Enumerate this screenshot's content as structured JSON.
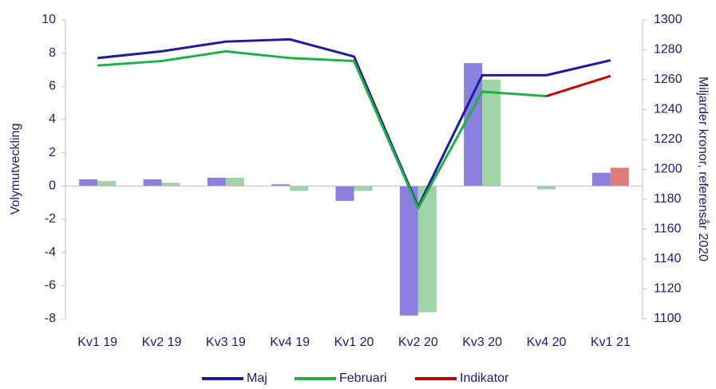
{
  "chart_data": {
    "type": "bar_line",
    "ylabel": "Volymutveckling",
    "y2label": "Miljarder kronor, referensår 2020",
    "categories": [
      "Kv1 19",
      "Kv2 19",
      "Kv3 19",
      "Kv4 19",
      "Kv1 20",
      "Kv2 20",
      "Kv3 20",
      "Kv4 20",
      "Kv1 21"
    ],
    "ylim": [
      -8,
      10
    ],
    "yticks": [
      -8,
      -6,
      -4,
      -2,
      0,
      2,
      4,
      6,
      8,
      10
    ],
    "y2lim": [
      1100,
      1300
    ],
    "y2ticks": [
      1100,
      1120,
      1140,
      1160,
      1180,
      1200,
      1220,
      1240,
      1260,
      1280,
      1300
    ],
    "legend": "bottom",
    "series": [
      {
        "name": "Maj",
        "color": "#1f1aa0",
        "bar_color": "#8b80e0",
        "axis": "y2",
        "values": [
          1274.5,
          1279,
          1285.5,
          1287,
          1275.5,
          1175,
          1263,
          1263,
          1273
        ],
        "bar_values": [
          0.4,
          0.4,
          0.5,
          0.1,
          -0.9,
          -7.8,
          7.4,
          null,
          0.8
        ]
      },
      {
        "name": "Februari",
        "color": "#1fb04a",
        "bar_color": "#9fd4a6",
        "axis": "y2",
        "values": [
          1269.5,
          1272.5,
          1279,
          1274.5,
          1272.5,
          1174,
          1252,
          1249,
          null
        ],
        "bar_values": [
          0.3,
          0.2,
          0.5,
          -0.3,
          -0.3,
          -7.6,
          6.4,
          -0.2,
          null
        ]
      },
      {
        "name": "Indikator",
        "color": "#c00000",
        "bar_color": "#e07b7b",
        "axis": "y2",
        "values": [
          null,
          null,
          null,
          null,
          null,
          null,
          null,
          1249,
          1262.5
        ],
        "bar_values": [
          null,
          null,
          null,
          null,
          null,
          null,
          null,
          null,
          1.1
        ]
      }
    ]
  }
}
